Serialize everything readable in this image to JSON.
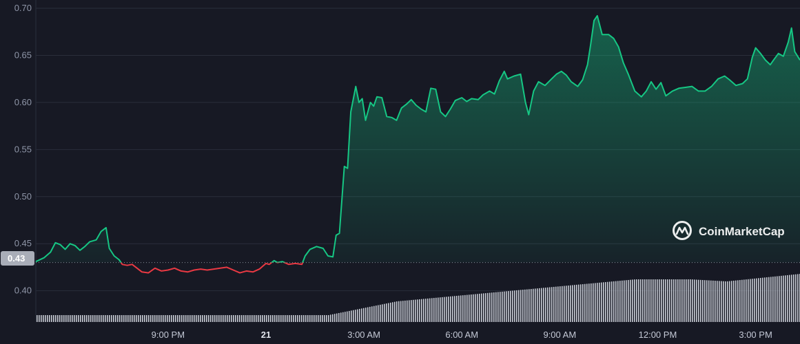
{
  "watermark": "CoinMarketCap",
  "colors": {
    "background": "#171924",
    "up": "#16c784",
    "down": "#ea3943",
    "grid": "#2a2e3b",
    "volume": "#c9cdd6",
    "base_label_bg": "#a9adb8"
  },
  "chart_data": {
    "type": "line",
    "title": "",
    "xlabel": "",
    "ylabel": "",
    "ylim": [
      0.38,
      0.7
    ],
    "baseline": 0.43,
    "baseline_label": "0.43",
    "y_ticks": [
      0.4,
      0.45,
      0.5,
      0.55,
      0.6,
      0.65,
      0.7
    ],
    "y_tick_labels": [
      "0.40",
      "0.45",
      "0.50",
      "0.55",
      "0.60",
      "0.65",
      "0.70"
    ],
    "x_ticks": [
      {
        "t": 1.0,
        "label": "9:00 PM",
        "bold": false
      },
      {
        "t": 4.0,
        "label": "21",
        "bold": true
      },
      {
        "t": 7.0,
        "label": "3:00 AM",
        "bold": false
      },
      {
        "t": 10.0,
        "label": "6:00 AM",
        "bold": false
      },
      {
        "t": 13.0,
        "label": "9:00 AM",
        "bold": false
      },
      {
        "t": 16.0,
        "label": "12:00 PM",
        "bold": false
      },
      {
        "t": 19.0,
        "label": "3:00 PM",
        "bold": false
      }
    ],
    "x_range_hours": [
      -3.05,
      20.36
    ],
    "series": [
      {
        "name": "",
        "points": [
          [
            -3.05,
            0.431
          ],
          [
            -2.8,
            0.435
          ],
          [
            -2.6,
            0.441
          ],
          [
            -2.45,
            0.451
          ],
          [
            -2.3,
            0.449
          ],
          [
            -2.15,
            0.444
          ],
          [
            -2.0,
            0.45
          ],
          [
            -1.85,
            0.448
          ],
          [
            -1.7,
            0.443
          ],
          [
            -1.55,
            0.447
          ],
          [
            -1.4,
            0.452
          ],
          [
            -1.2,
            0.454
          ],
          [
            -1.05,
            0.463
          ],
          [
            -0.9,
            0.467
          ],
          [
            -0.8,
            0.445
          ],
          [
            -0.65,
            0.437
          ],
          [
            -0.5,
            0.433
          ],
          [
            -0.4,
            0.428
          ],
          [
            -0.25,
            0.427
          ],
          [
            -0.1,
            0.428
          ],
          [
            0.05,
            0.424
          ],
          [
            0.2,
            0.42
          ],
          [
            0.4,
            0.419
          ],
          [
            0.6,
            0.424
          ],
          [
            0.8,
            0.421
          ],
          [
            1.0,
            0.422
          ],
          [
            1.2,
            0.424
          ],
          [
            1.4,
            0.421
          ],
          [
            1.6,
            0.42
          ],
          [
            1.8,
            0.422
          ],
          [
            2.0,
            0.423
          ],
          [
            2.2,
            0.422
          ],
          [
            2.4,
            0.423
          ],
          [
            2.6,
            0.424
          ],
          [
            2.8,
            0.425
          ],
          [
            3.0,
            0.422
          ],
          [
            3.2,
            0.419
          ],
          [
            3.4,
            0.421
          ],
          [
            3.6,
            0.42
          ],
          [
            3.8,
            0.423
          ],
          [
            4.0,
            0.429
          ],
          [
            4.1,
            0.428
          ],
          [
            4.25,
            0.432
          ],
          [
            4.35,
            0.43
          ],
          [
            4.5,
            0.431
          ],
          [
            4.7,
            0.428
          ],
          [
            4.9,
            0.429
          ],
          [
            5.1,
            0.428
          ],
          [
            5.2,
            0.437
          ],
          [
            5.35,
            0.444
          ],
          [
            5.55,
            0.447
          ],
          [
            5.75,
            0.445
          ],
          [
            5.9,
            0.437
          ],
          [
            6.05,
            0.436
          ],
          [
            6.15,
            0.459
          ],
          [
            6.25,
            0.461
          ],
          [
            6.4,
            0.532
          ],
          [
            6.5,
            0.53
          ],
          [
            6.6,
            0.59
          ],
          [
            6.75,
            0.617
          ],
          [
            6.85,
            0.6
          ],
          [
            6.95,
            0.604
          ],
          [
            7.05,
            0.581
          ],
          [
            7.2,
            0.6
          ],
          [
            7.3,
            0.596
          ],
          [
            7.4,
            0.606
          ],
          [
            7.55,
            0.605
          ],
          [
            7.7,
            0.585
          ],
          [
            7.85,
            0.584
          ],
          [
            8.0,
            0.581
          ],
          [
            8.15,
            0.594
          ],
          [
            8.3,
            0.598
          ],
          [
            8.45,
            0.603
          ],
          [
            8.6,
            0.597
          ],
          [
            8.75,
            0.593
          ],
          [
            8.9,
            0.59
          ],
          [
            9.05,
            0.615
          ],
          [
            9.2,
            0.614
          ],
          [
            9.35,
            0.59
          ],
          [
            9.5,
            0.585
          ],
          [
            9.65,
            0.593
          ],
          [
            9.8,
            0.602
          ],
          [
            10.0,
            0.605
          ],
          [
            10.15,
            0.601
          ],
          [
            10.3,
            0.604
          ],
          [
            10.5,
            0.603
          ],
          [
            10.65,
            0.608
          ],
          [
            10.85,
            0.612
          ],
          [
            11.0,
            0.609
          ],
          [
            11.15,
            0.623
          ],
          [
            11.3,
            0.633
          ],
          [
            11.4,
            0.625
          ],
          [
            11.6,
            0.628
          ],
          [
            11.8,
            0.63
          ],
          [
            11.95,
            0.6
          ],
          [
            12.05,
            0.587
          ],
          [
            12.2,
            0.612
          ],
          [
            12.35,
            0.622
          ],
          [
            12.55,
            0.618
          ],
          [
            12.75,
            0.625
          ],
          [
            12.9,
            0.63
          ],
          [
            13.05,
            0.633
          ],
          [
            13.2,
            0.629
          ],
          [
            13.35,
            0.622
          ],
          [
            13.55,
            0.617
          ],
          [
            13.7,
            0.624
          ],
          [
            13.85,
            0.64
          ],
          [
            13.95,
            0.662
          ],
          [
            14.05,
            0.687
          ],
          [
            14.15,
            0.692
          ],
          [
            14.3,
            0.672
          ],
          [
            14.5,
            0.672
          ],
          [
            14.65,
            0.668
          ],
          [
            14.8,
            0.659
          ],
          [
            14.95,
            0.642
          ],
          [
            15.1,
            0.63
          ],
          [
            15.3,
            0.612
          ],
          [
            15.5,
            0.606
          ],
          [
            15.65,
            0.612
          ],
          [
            15.8,
            0.622
          ],
          [
            15.95,
            0.614
          ],
          [
            16.1,
            0.621
          ],
          [
            16.25,
            0.607
          ],
          [
            16.45,
            0.612
          ],
          [
            16.65,
            0.615
          ],
          [
            16.85,
            0.616
          ],
          [
            17.05,
            0.617
          ],
          [
            17.25,
            0.612
          ],
          [
            17.45,
            0.612
          ],
          [
            17.65,
            0.617
          ],
          [
            17.85,
            0.625
          ],
          [
            18.05,
            0.628
          ],
          [
            18.2,
            0.624
          ],
          [
            18.4,
            0.618
          ],
          [
            18.6,
            0.62
          ],
          [
            18.75,
            0.625
          ],
          [
            18.9,
            0.648
          ],
          [
            19.0,
            0.658
          ],
          [
            19.15,
            0.652
          ],
          [
            19.3,
            0.645
          ],
          [
            19.45,
            0.64
          ],
          [
            19.55,
            0.645
          ],
          [
            19.7,
            0.652
          ],
          [
            19.85,
            0.649
          ],
          [
            20.0,
            0.664
          ],
          [
            20.1,
            0.679
          ],
          [
            20.2,
            0.654
          ],
          [
            20.36,
            0.645
          ]
        ]
      }
    ]
  }
}
